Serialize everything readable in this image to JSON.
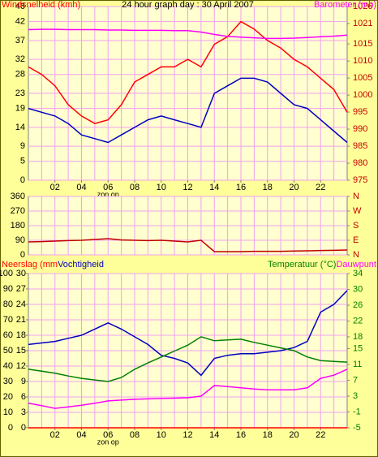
{
  "chart_data": [
    {
      "type": "line",
      "title": "24 hour graph day : 30 April 2007",
      "x": [
        0,
        1,
        2,
        3,
        4,
        5,
        6,
        7,
        8,
        9,
        10,
        11,
        12,
        13,
        14,
        15,
        16,
        17,
        18,
        19,
        20,
        21,
        22,
        23,
        24
      ],
      "xlim": [
        0,
        24
      ],
      "xticks": [
        {
          "value": 2,
          "label": "02"
        },
        {
          "value": 4,
          "label": "04"
        },
        {
          "value": 6,
          "label": "06"
        },
        {
          "value": 8,
          "label": "08"
        },
        {
          "value": 10,
          "label": "10"
        },
        {
          "value": 12,
          "label": "12"
        },
        {
          "value": 14,
          "label": "14"
        },
        {
          "value": 16,
          "label": "16"
        },
        {
          "value": 18,
          "label": "18"
        },
        {
          "value": 20,
          "label": "20"
        },
        {
          "value": 22,
          "label": "22"
        }
      ],
      "xgrid": [
        1,
        2,
        3,
        4,
        5,
        6,
        7,
        8,
        9,
        10,
        11,
        12,
        13,
        14,
        15,
        16,
        17,
        18,
        19,
        20,
        21,
        22,
        23
      ],
      "annotations": [
        {
          "text": "zon op",
          "x": 6
        }
      ],
      "ylim": [
        0,
        46
      ],
      "yticks": [
        0,
        5,
        9,
        14,
        19,
        23,
        28,
        32,
        37,
        42,
        46
      ],
      "y2lim": [
        975,
        1026
      ],
      "y2ticks": [
        975,
        980,
        985,
        990,
        995,
        1000,
        1005,
        1010,
        1015,
        1021,
        1026
      ],
      "grid": true,
      "series": [
        {
          "name": "Windsnelheid (kmh)",
          "color": "#ff0000",
          "values": [
            30,
            28,
            25,
            20,
            17,
            15,
            16,
            20,
            26,
            28,
            30,
            30,
            32,
            30,
            36,
            38,
            42,
            40,
            37,
            35,
            32,
            30,
            27,
            24,
            18
          ]
        },
        {
          "color": "#0000c0",
          "values": [
            19,
            18,
            17,
            15,
            12,
            11,
            10,
            12,
            14,
            16,
            17,
            16,
            15,
            14,
            23,
            25,
            27,
            27,
            26,
            23,
            20,
            19,
            16,
            13,
            10
          ]
        },
        {
          "name": "Barometer (mb)",
          "color": "#ff00ff",
          "axis": "y2",
          "values": [
            1019.2,
            1019.3,
            1019.3,
            1019.2,
            1019.2,
            1019.2,
            1019.1,
            1019.1,
            1019,
            1019,
            1019,
            1018.9,
            1018.9,
            1018.5,
            1017.8,
            1017.2,
            1017,
            1016.8,
            1016.6,
            1016.6,
            1016.7,
            1016.9,
            1017.1,
            1017.3,
            1017.6
          ]
        }
      ]
    },
    {
      "type": "line",
      "x": [
        0,
        1,
        2,
        3,
        4,
        5,
        6,
        7,
        8,
        9,
        10,
        11,
        12,
        13,
        14,
        15,
        16,
        17,
        18,
        19,
        20,
        21,
        22,
        23,
        24
      ],
      "xlim": [
        0,
        24
      ],
      "xgrid": [
        1,
        2,
        3,
        4,
        5,
        6,
        7,
        8,
        9,
        10,
        11,
        12,
        13,
        14,
        15,
        16,
        17,
        18,
        19,
        20,
        21,
        22,
        23
      ],
      "ylim": [
        0,
        360
      ],
      "yticks": [
        0,
        90,
        180,
        270,
        360
      ],
      "y2lim": [
        0,
        360
      ],
      "y2ticks": [
        {
          "value": 0,
          "label": "N"
        },
        {
          "value": 90,
          "label": "E"
        },
        {
          "value": 180,
          "label": "S"
        },
        {
          "value": 270,
          "label": "W"
        },
        {
          "value": 360,
          "label": "N"
        }
      ],
      "grid": true,
      "series": [
        {
          "color": "#c00000",
          "values": [
            80,
            82,
            85,
            88,
            90,
            95,
            100,
            92,
            90,
            88,
            90,
            85,
            80,
            90,
            20,
            20,
            20,
            22,
            22,
            22,
            24,
            25,
            27,
            28,
            30
          ]
        }
      ]
    },
    {
      "type": "line",
      "x": [
        0,
        1,
        2,
        3,
        4,
        5,
        6,
        7,
        8,
        9,
        10,
        11,
        12,
        13,
        14,
        15,
        16,
        17,
        18,
        19,
        20,
        21,
        22,
        23,
        24
      ],
      "xlim": [
        0,
        24
      ],
      "xticks": [
        {
          "value": 2,
          "label": "02"
        },
        {
          "value": 4,
          "label": "04"
        },
        {
          "value": 6,
          "label": "06"
        },
        {
          "value": 8,
          "label": "08"
        },
        {
          "value": 10,
          "label": "10"
        },
        {
          "value": 12,
          "label": "12"
        },
        {
          "value": 14,
          "label": "14"
        },
        {
          "value": 16,
          "label": "16"
        },
        {
          "value": 18,
          "label": "18"
        },
        {
          "value": 20,
          "label": "20"
        },
        {
          "value": 22,
          "label": "22"
        }
      ],
      "xgrid": [
        1,
        2,
        3,
        4,
        5,
        6,
        7,
        8,
        9,
        10,
        11,
        12,
        13,
        14,
        15,
        16,
        17,
        18,
        19,
        20,
        21,
        22,
        23
      ],
      "annotations": [
        {
          "text": "zon op",
          "x": 6
        }
      ],
      "ylim": [
        0,
        100
      ],
      "yticks": [
        0,
        10,
        20,
        30,
        40,
        50,
        60,
        70,
        80,
        90,
        100
      ],
      "y3lim": [
        0,
        30
      ],
      "y3ticks": [
        0,
        3,
        6,
        9,
        12,
        15,
        18,
        21,
        24,
        27,
        30
      ],
      "y2lim": [
        -5,
        34
      ],
      "y2ticks": [
        -5,
        -1,
        3,
        7,
        11,
        15,
        18,
        22,
        26,
        30,
        34
      ],
      "grid": true,
      "series": [
        {
          "name": "Neerslag (mm",
          "color": "#ff0000",
          "axis": "y3",
          "values": [
            0,
            0,
            0,
            0,
            0,
            0,
            0,
            0,
            0,
            0,
            0,
            0,
            0,
            0,
            0,
            0,
            0,
            0,
            0,
            0,
            0,
            0,
            0,
            0,
            0
          ]
        },
        {
          "name": "Vochtigheid",
          "color": "#0000c0",
          "values": [
            54,
            55,
            56,
            58,
            60,
            64,
            68,
            64,
            59,
            54,
            47,
            45,
            42,
            34,
            45,
            47,
            48,
            48,
            49,
            50,
            52,
            56,
            75,
            80,
            89
          ]
        },
        {
          "name": "Temperatuur (°C)",
          "color": "#008000",
          "axis": "y2",
          "values": [
            9.8,
            9.3,
            8.8,
            8.1,
            7.5,
            7.1,
            6.7,
            7.7,
            9.8,
            11.4,
            12.9,
            14.4,
            15.9,
            18,
            17,
            17.2,
            17.4,
            16.6,
            15.9,
            15.2,
            14.5,
            12.9,
            12,
            11.8,
            11.6
          ]
        },
        {
          "name": "Dauwpunt",
          "color": "#ff00ff",
          "axis": "y2",
          "values": [
            1.2,
            0.6,
            -0.1,
            0.3,
            0.7,
            1.2,
            1.8,
            2,
            2.2,
            2.3,
            2.4,
            2.5,
            2.6,
            3,
            5.7,
            5.4,
            5.1,
            4.8,
            4.6,
            4.6,
            4.6,
            5.1,
            7.5,
            8.3,
            9.8
          ]
        }
      ]
    }
  ]
}
